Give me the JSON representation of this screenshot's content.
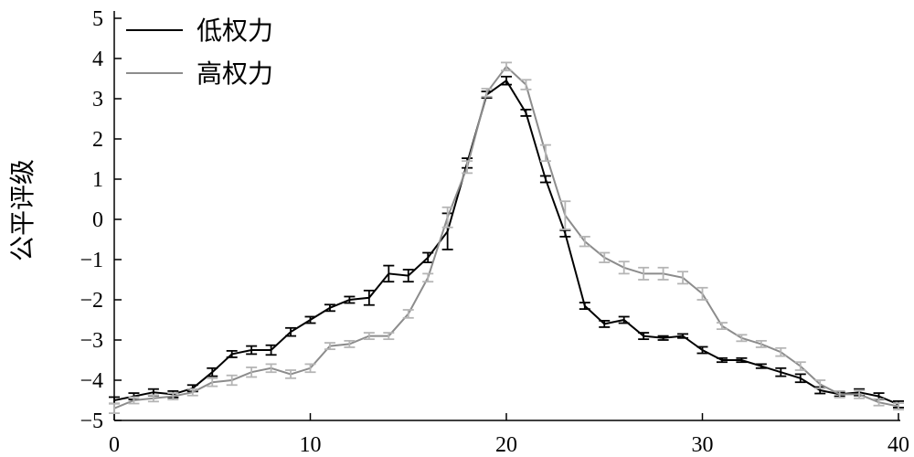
{
  "chart_data": {
    "type": "line",
    "ylabel": "公平评级",
    "xlabel": "",
    "xlim": [
      0,
      40
    ],
    "ylim": [
      -5,
      5
    ],
    "xticks": [
      0,
      10,
      20,
      30,
      40
    ],
    "yticks": [
      5,
      4,
      3,
      2,
      1,
      0,
      -1,
      -2,
      -3,
      -4,
      -5
    ],
    "grid": false,
    "legend_position": "top-left",
    "series": [
      {
        "name": "低权力",
        "color": "#000000",
        "x": [
          0,
          1,
          2,
          3,
          4,
          5,
          6,
          7,
          8,
          9,
          10,
          11,
          12,
          13,
          14,
          15,
          16,
          17,
          18,
          19,
          20,
          21,
          22,
          23,
          24,
          25,
          26,
          27,
          28,
          29,
          30,
          31,
          32,
          33,
          34,
          35,
          36,
          37,
          38,
          39,
          40
        ],
        "y": [
          -4.5,
          -4.4,
          -4.3,
          -4.35,
          -4.2,
          -3.8,
          -3.35,
          -3.25,
          -3.25,
          -2.8,
          -2.5,
          -2.2,
          -2.0,
          -1.95,
          -1.35,
          -1.4,
          -0.95,
          -0.3,
          1.4,
          3.1,
          3.45,
          2.65,
          1.0,
          -0.35,
          -2.15,
          -2.6,
          -2.5,
          -2.9,
          -2.95,
          -2.9,
          -3.25,
          -3.5,
          -3.5,
          -3.65,
          -3.8,
          -3.95,
          -4.25,
          -4.35,
          -4.3,
          -4.4,
          -4.6
        ],
        "err": [
          0.08,
          0.08,
          0.08,
          0.08,
          0.08,
          0.1,
          0.08,
          0.1,
          0.12,
          0.1,
          0.08,
          0.08,
          0.08,
          0.18,
          0.2,
          0.15,
          0.12,
          0.45,
          0.12,
          0.08,
          0.1,
          0.08,
          0.08,
          0.08,
          0.08,
          0.08,
          0.08,
          0.08,
          0.05,
          0.05,
          0.08,
          0.05,
          0.05,
          0.05,
          0.1,
          0.1,
          0.08,
          0.05,
          0.08,
          0.08,
          0.08
        ]
      },
      {
        "name": "高权力",
        "color": "#8c8c8c",
        "errcolor": "#b5b5b5",
        "x": [
          0,
          1,
          2,
          3,
          4,
          5,
          6,
          7,
          8,
          9,
          10,
          11,
          12,
          13,
          14,
          15,
          16,
          17,
          18,
          19,
          20,
          21,
          22,
          23,
          24,
          25,
          26,
          27,
          28,
          29,
          30,
          31,
          32,
          33,
          34,
          35,
          36,
          37,
          38,
          39,
          40
        ],
        "y": [
          -4.7,
          -4.5,
          -4.45,
          -4.4,
          -4.3,
          -4.05,
          -4.0,
          -3.8,
          -3.7,
          -3.85,
          -3.7,
          -3.15,
          -3.1,
          -2.9,
          -2.9,
          -2.35,
          -1.45,
          0.05,
          1.3,
          3.15,
          3.8,
          3.35,
          1.65,
          0.1,
          -0.55,
          -0.95,
          -1.2,
          -1.35,
          -1.35,
          -1.45,
          -1.85,
          -2.65,
          -2.95,
          -3.1,
          -3.3,
          -3.65,
          -4.1,
          -4.35,
          -4.35,
          -4.55,
          -4.65
        ],
        "err": [
          0.12,
          0.08,
          0.08,
          0.08,
          0.08,
          0.1,
          0.12,
          0.12,
          0.1,
          0.1,
          0.1,
          0.08,
          0.08,
          0.08,
          0.08,
          0.1,
          0.1,
          0.25,
          0.15,
          0.1,
          0.1,
          0.12,
          0.2,
          0.35,
          0.12,
          0.12,
          0.15,
          0.15,
          0.15,
          0.15,
          0.15,
          0.08,
          0.08,
          0.08,
          0.1,
          0.1,
          0.1,
          0.08,
          0.1,
          0.08,
          0.08
        ]
      }
    ]
  }
}
